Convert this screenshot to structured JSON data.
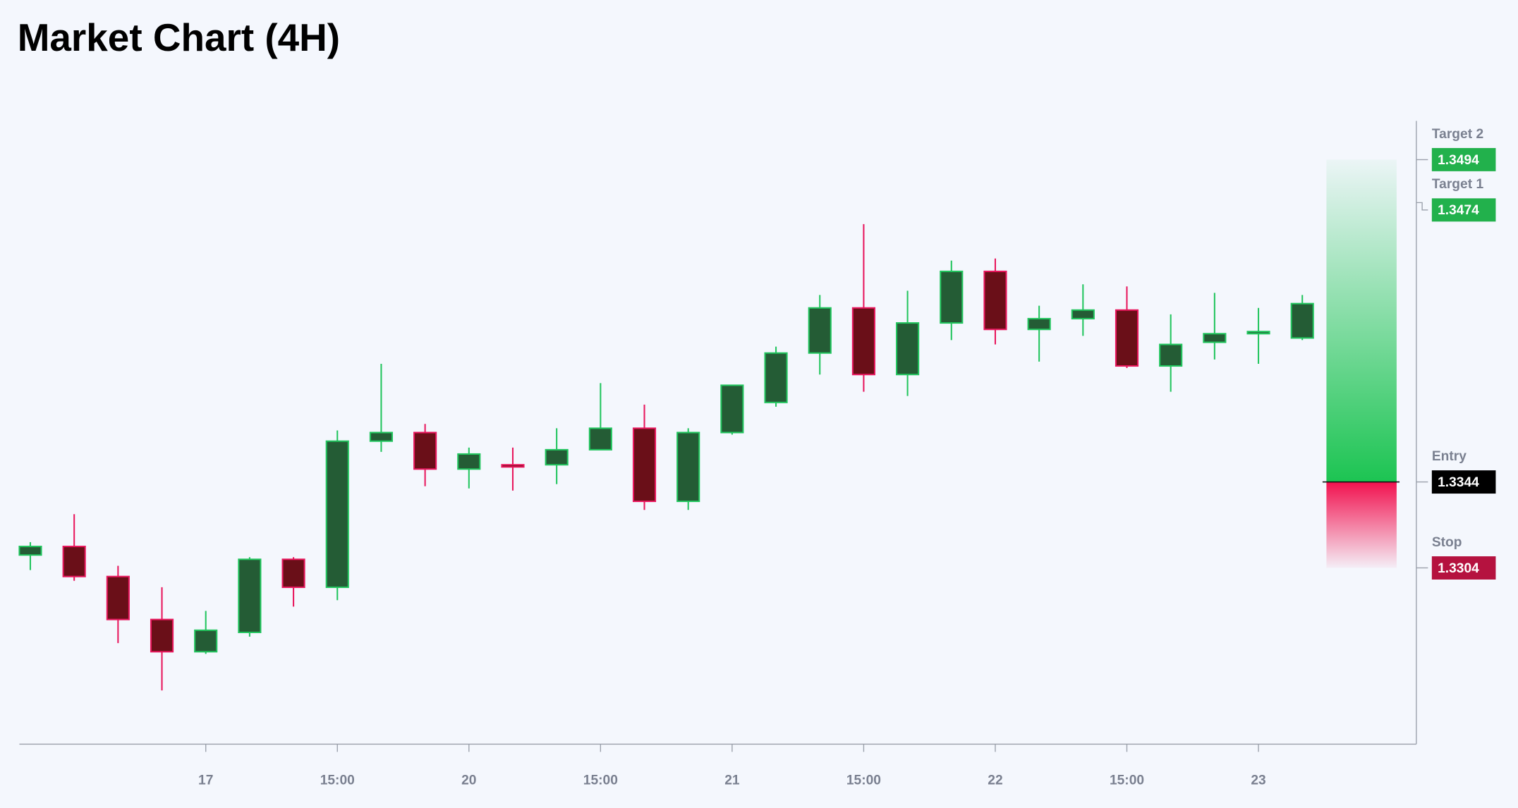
{
  "chart_data": {
    "type": "candlestick",
    "title": "Market Chart (4H)",
    "categories": [
      null,
      null,
      null,
      null,
      null,
      null,
      null,
      null,
      null,
      null,
      null,
      null,
      null,
      null,
      null,
      null,
      null,
      null,
      null,
      null,
      null,
      null,
      null,
      null,
      null,
      null,
      null,
      null,
      null,
      null
    ],
    "open": [
      1.331,
      1.3314,
      1.33,
      1.328,
      1.3265,
      1.3274,
      1.3308,
      1.3295,
      1.3363,
      1.3367,
      1.335,
      1.3352,
      1.3352,
      1.3359,
      1.3369,
      1.3335,
      1.3367,
      1.3381,
      1.3404,
      1.3425,
      1.3394,
      1.3418,
      1.3442,
      1.3415,
      1.342,
      1.3424,
      1.3398,
      1.3409,
      1.3413,
      1.3411
    ],
    "high": [
      1.3316,
      1.3329,
      1.3305,
      1.3295,
      1.3284,
      1.3309,
      1.3309,
      1.3368,
      1.3399,
      1.3371,
      1.336,
      1.336,
      1.3369,
      1.339,
      1.338,
      1.3369,
      1.3389,
      1.3407,
      1.3431,
      1.3464,
      1.3433,
      1.3447,
      1.3448,
      1.3426,
      1.3436,
      1.3435,
      1.3422,
      1.3432,
      1.3425,
      1.3431
    ],
    "low": [
      1.3303,
      1.3298,
      1.3269,
      1.3247,
      1.3264,
      1.3272,
      1.3286,
      1.3289,
      1.3358,
      1.3342,
      1.3341,
      1.334,
      1.3343,
      1.3359,
      1.3331,
      1.3331,
      1.3366,
      1.3379,
      1.3394,
      1.3386,
      1.3384,
      1.341,
      1.3408,
      1.34,
      1.3412,
      1.3397,
      1.3386,
      1.3401,
      1.3399,
      1.341
    ],
    "close": [
      1.3314,
      1.33,
      1.328,
      1.3265,
      1.3275,
      1.3308,
      1.3295,
      1.3363,
      1.3367,
      1.335,
      1.3357,
      1.3351,
      1.3359,
      1.3369,
      1.3335,
      1.3367,
      1.3389,
      1.3404,
      1.3425,
      1.3394,
      1.3418,
      1.3442,
      1.3415,
      1.342,
      1.3424,
      1.3398,
      1.3408,
      1.3413,
      1.3414,
      1.3427
    ],
    "xlim": [
      -0.25,
      31.6
    ],
    "xticks": [
      {
        "value": 4,
        "label": "17"
      },
      {
        "value": 7,
        "label": "15:00"
      },
      {
        "value": 10,
        "label": "20"
      },
      {
        "value": 13,
        "label": "15:00"
      },
      {
        "value": 16,
        "label": "21"
      },
      {
        "value": 19,
        "label": "15:00"
      },
      {
        "value": 22,
        "label": "22"
      },
      {
        "value": 25,
        "label": "15:00"
      },
      {
        "value": 28,
        "label": "23"
      }
    ],
    "ylim": [
      1.3222,
      1.3512
    ],
    "up_color": "#22c55e",
    "down_color": "#e8175d",
    "levels": [
      {
        "name": "Target 2",
        "value": 1.3494,
        "color": "#22b14c"
      },
      {
        "name": "Target 1",
        "value": 1.3474,
        "color": "#22b14c"
      },
      {
        "name": "Entry",
        "value": 1.3344,
        "color": "#000000"
      },
      {
        "name": "Stop",
        "value": 1.3304,
        "color": "#b5123f"
      }
    ]
  }
}
